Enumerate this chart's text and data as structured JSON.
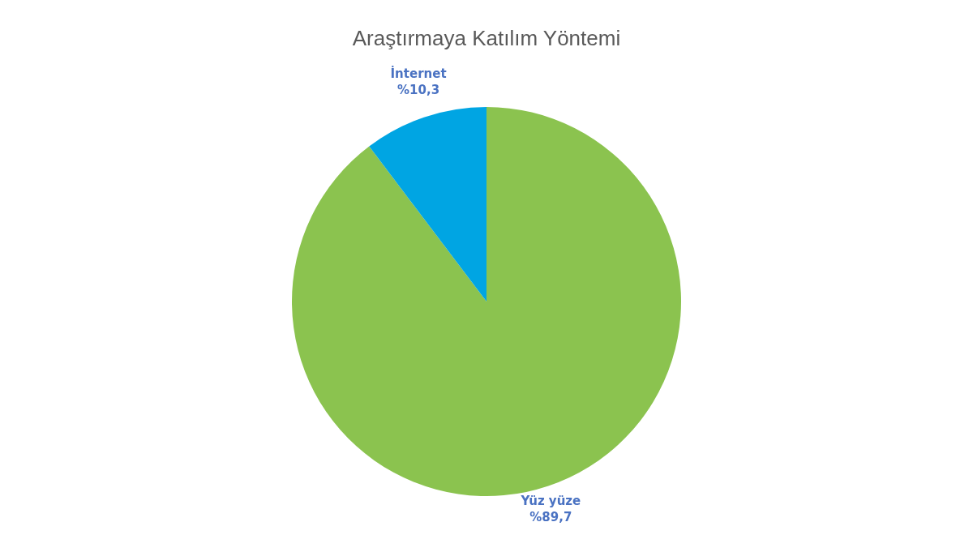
{
  "chart_data": {
    "type": "pie",
    "title": "Araştırmaya Katılım Yöntemi",
    "categories": [
      "Yüz yüze",
      "İnternet"
    ],
    "values": [
      89.7,
      10.3
    ],
    "colors": [
      "#8bc34f",
      "#00a5e3"
    ],
    "value_labels": [
      "%89,7",
      "%10,3"
    ]
  }
}
